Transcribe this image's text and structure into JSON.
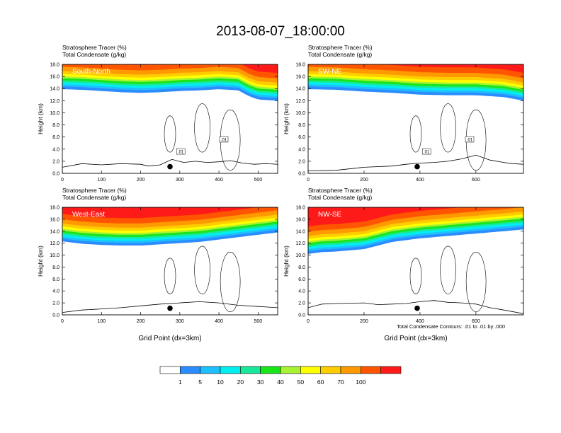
{
  "figure": {
    "title": "2013-08-07_18:00:00",
    "x_axis_label": "Grid Point (dx=3km)",
    "contour_note": "Total Condensate Contours: .01 to .01 by .000"
  },
  "colorbar": {
    "colors": [
      "#ffffff",
      "#2a8cff",
      "#1fbfff",
      "#00f0f0",
      "#19e89a",
      "#19e619",
      "#a8f233",
      "#ffff00",
      "#ffcc00",
      "#ff9900",
      "#ff5500",
      "#ff1a1a"
    ],
    "labels": [
      "1",
      "5",
      "10",
      "20",
      "30",
      "40",
      "50",
      "60",
      "70",
      "100"
    ]
  },
  "chart_data": [
    {
      "type": "filled-contour",
      "panel_label": "South-North",
      "subtitle_1": "Stratosphere Tracer   (%)",
      "subtitle_2": "Total Condensate   (g/kg)",
      "ylabel": "Height (km)",
      "xlabel": "",
      "xlim": [
        0,
        550
      ],
      "ylim": [
        0,
        18
      ],
      "xticks": [
        0,
        100,
        200,
        300,
        400,
        500
      ],
      "yticks": [
        "0.0",
        "2.0",
        "4.0",
        "6.0",
        "8.0",
        "10.0",
        "12.0",
        "14.0",
        "16.0",
        "18.0"
      ],
      "tracer_front_x": [
        0,
        50,
        100,
        150,
        200,
        250,
        300,
        350,
        400,
        450,
        475,
        500,
        550
      ],
      "tracer_front_y": [
        13.9,
        13.8,
        13.6,
        13.4,
        13.3,
        13.4,
        13.6,
        13.7,
        13.9,
        13.7,
        12.8,
        12.2,
        12.0
      ],
      "terrain_x": [
        0,
        50,
        100,
        150,
        200,
        220,
        250,
        280,
        310,
        340,
        370,
        400,
        430,
        460,
        490,
        520,
        550
      ],
      "terrain_y": [
        1.0,
        1.6,
        1.4,
        1.6,
        1.5,
        1.2,
        1.4,
        2.3,
        1.8,
        2.0,
        1.8,
        1.9,
        2.1,
        1.7,
        1.5,
        1.6,
        1.5
      ],
      "contour_labels": [
        ".01",
        ".01"
      ],
      "marker_x": 275,
      "marker_y": 1.1
    },
    {
      "type": "filled-contour",
      "panel_label": "SW-NE",
      "subtitle_1": "Stratosphere Tracer   (%)",
      "subtitle_2": "Total Condensate   (g/kg)",
      "ylabel": "Height (km)",
      "xlabel": "",
      "xlim": [
        0,
        770
      ],
      "ylim": [
        0,
        18
      ],
      "xticks": [
        0,
        200,
        400,
        600
      ],
      "yticks": [
        "0.0",
        "2.0",
        "4.0",
        "6.0",
        "8.0",
        "10.0",
        "12.0",
        "14.0",
        "16.0",
        "18.0"
      ],
      "tracer_front_x": [
        0,
        100,
        200,
        300,
        400,
        500,
        600,
        700,
        770
      ],
      "tracer_front_y": [
        13.9,
        13.8,
        13.5,
        13.3,
        13.0,
        12.9,
        12.9,
        12.6,
        12.0
      ],
      "terrain_x": [
        0,
        100,
        200,
        300,
        350,
        400,
        450,
        500,
        550,
        600,
        650,
        700,
        730,
        770
      ],
      "terrain_y": [
        0.4,
        0.5,
        1.0,
        1.2,
        1.5,
        1.7,
        1.8,
        2.0,
        2.4,
        3.0,
        2.2,
        1.8,
        1.6,
        1.5
      ],
      "contour_labels": [
        ".01",
        ".01"
      ],
      "marker_x": 390,
      "marker_y": 1.1
    },
    {
      "type": "filled-contour",
      "panel_label": "West-East",
      "subtitle_1": "Stratosphere Tracer   (%)",
      "subtitle_2": "Total Condensate   (g/kg)",
      "ylabel": "Height (km)",
      "xlabel": "Grid Point (dx=3km)",
      "xlim": [
        0,
        550
      ],
      "ylim": [
        0,
        18
      ],
      "xticks": [
        0,
        100,
        200,
        300,
        400,
        500
      ],
      "yticks": [
        "0.0",
        "2.0",
        "4.0",
        "6.0",
        "8.0",
        "10.0",
        "12.0",
        "14.0",
        "16.0",
        "18.0"
      ],
      "tracer_front_x": [
        0,
        50,
        100,
        150,
        200,
        250,
        300,
        350,
        400,
        450,
        500,
        550
      ],
      "tracer_front_y": [
        12.3,
        11.9,
        11.7,
        11.6,
        11.6,
        11.8,
        12.0,
        12.2,
        12.6,
        13.0,
        13.4,
        13.8
      ],
      "terrain_x": [
        0,
        50,
        100,
        150,
        200,
        250,
        300,
        350,
        400,
        450,
        500,
        550
      ],
      "terrain_y": [
        0.4,
        0.8,
        1.0,
        1.2,
        1.5,
        1.8,
        2.0,
        2.2,
        2.0,
        1.6,
        1.4,
        1.2
      ],
      "contour_labels": [],
      "marker_x": 275,
      "marker_y": 1.1
    },
    {
      "type": "filled-contour",
      "panel_label": "NW-SE",
      "subtitle_1": "Stratosphere Tracer   (%)",
      "subtitle_2": "Total Condensate   (g/kg)",
      "ylabel": "Height (km)",
      "xlabel": "Grid Point (dx=3km)",
      "xlim": [
        0,
        770
      ],
      "ylim": [
        0,
        18
      ],
      "xticks": [
        0,
        200,
        400,
        600
      ],
      "yticks": [
        "0.0",
        "2.0",
        "4.0",
        "6.0",
        "8.0",
        "10.0",
        "12.0",
        "14.0",
        "16.0",
        "18.0"
      ],
      "tracer_front_x": [
        0,
        50,
        100,
        200,
        250,
        300,
        400,
        500,
        600,
        700,
        770
      ],
      "tracer_front_y": [
        10.2,
        10.5,
        10.6,
        11.0,
        11.6,
        12.2,
        12.8,
        13.2,
        13.6,
        14.0,
        14.3
      ],
      "terrain_x": [
        0,
        50,
        100,
        200,
        250,
        300,
        350,
        400,
        450,
        500,
        550,
        600,
        650,
        700,
        770
      ],
      "terrain_y": [
        1.2,
        1.8,
        1.9,
        2.0,
        1.7,
        1.8,
        1.9,
        2.2,
        2.4,
        2.1,
        2.0,
        1.8,
        1.2,
        0.8,
        0.2
      ],
      "contour_labels": [],
      "marker_x": 390,
      "marker_y": 1.1
    }
  ]
}
